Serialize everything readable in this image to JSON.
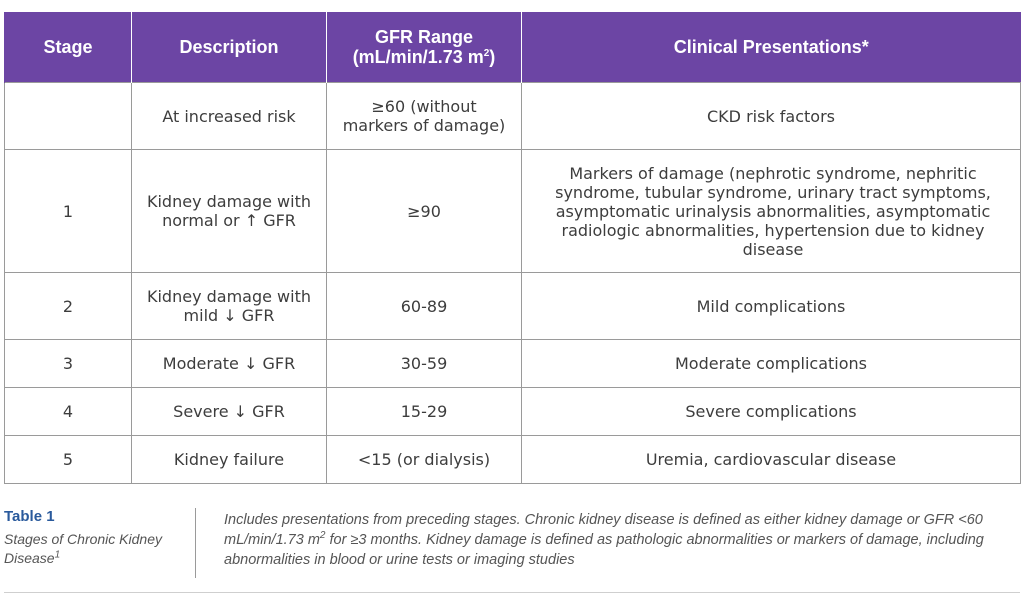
{
  "header": {
    "stage": "Stage",
    "description": "Description",
    "gfr_line1": "GFR Range",
    "gfr_line2": "(mL/min/1.73 m",
    "gfr_sup": "2",
    "gfr_close": ")",
    "clinical": "Clinical Presentations*"
  },
  "rows": [
    {
      "stage": "",
      "description": "At increased risk",
      "gfr": "≥60 (without markers of damage)",
      "clinical": "CKD risk factors"
    },
    {
      "stage": "1",
      "description": "Kidney damage with normal or ↑ GFR",
      "gfr": "≥90",
      "clinical": "Markers of damage (nephrotic syndrome, nephritic syndrome, tubular syndrome, urinary tract symptoms, asymptomatic urinalysis abnormalities, asymptomatic radiologic abnormalities, hypertension due to kidney disease"
    },
    {
      "stage": "2",
      "description": "Kidney damage with mild ↓ GFR",
      "gfr": "60-89",
      "clinical": "Mild complications"
    },
    {
      "stage": "3",
      "description": "Moderate ↓ GFR",
      "gfr": "30-59",
      "clinical": "Moderate complications"
    },
    {
      "stage": "4",
      "description": "Severe ↓ GFR",
      "gfr": "15-29",
      "clinical": "Severe complications"
    },
    {
      "stage": "5",
      "description": "Kidney failure",
      "gfr": "<15 (or dialysis)",
      "clinical": "Uremia, cardiovascular disease"
    }
  ],
  "caption": {
    "title": "Table 1",
    "subtitle": "Stages of Chronic Kidney Disease",
    "subtitle_sup": "1",
    "note_part1": "Includes presentations from preceding stages. Chronic kidney disease is defined as either kidney damage or GFR <60 mL/min/1.73 m",
    "note_sup": "2",
    "note_part2": " for ≥3 months. Kidney damage is defined as pathologic abnormalities or markers of damage, including abnormalities in blood or urine tests or imaging studies"
  },
  "colors": {
    "header_bg": "#6c45a4",
    "caption_title": "#2a5a9c",
    "grid": "#9a9a9a"
  }
}
